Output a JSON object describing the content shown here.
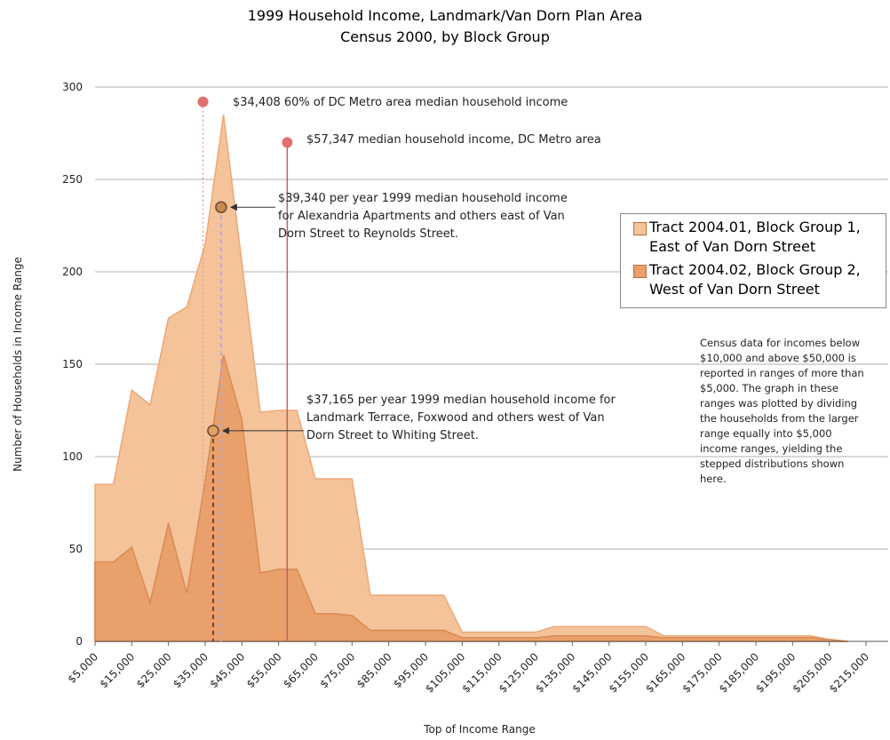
{
  "chart_data": {
    "type": "area",
    "title": "1999 Household Income, Landmark/Van Dorn Plan Area",
    "subtitle": "Census 2000, by Block Group",
    "ylabel": "Number of Households in Income Range",
    "xlabel": "Top of Income Range",
    "x": [
      5000,
      10000,
      15000,
      20000,
      25000,
      30000,
      35000,
      40000,
      45000,
      50000,
      55000,
      60000,
      65000,
      70000,
      75000,
      80000,
      85000,
      90000,
      95000,
      100000,
      105000,
      110000,
      115000,
      120000,
      125000,
      130000,
      135000,
      140000,
      145000,
      150000,
      155000,
      160000,
      165000,
      170000,
      175000,
      180000,
      185000,
      190000,
      195000,
      200000,
      205000,
      210000
    ],
    "series": [
      {
        "name": "Tract 2004.01, Block Group 1, East of Van Dorn Street",
        "color": "#f4c39a",
        "values": [
          85,
          85,
          136,
          128,
          175,
          181,
          215,
          285,
          205,
          124,
          125,
          125,
          88,
          88,
          88,
          25,
          25,
          25,
          25,
          25,
          5,
          5,
          5,
          5,
          5,
          8,
          8,
          8,
          8,
          8,
          8,
          3,
          3,
          3,
          3,
          3,
          3,
          3,
          3,
          3,
          1,
          0
        ]
      },
      {
        "name": "Tract 2004.02, Block Group 2, West of Van Dorn Street",
        "color": "#e9a06a",
        "values": [
          43,
          43,
          51,
          21,
          64,
          26,
          87,
          155,
          120,
          37,
          39,
          39,
          15,
          15,
          14,
          6,
          6,
          6,
          6,
          6,
          2,
          2,
          2,
          2,
          2,
          3,
          3,
          3,
          3,
          3,
          3,
          2,
          2,
          2,
          2,
          2,
          2,
          2,
          2,
          2,
          1,
          0
        ]
      }
    ],
    "xlim": [
      5000,
      215000
    ],
    "xticks": [
      {
        "value": 5000,
        "label": "$5,000"
      },
      {
        "value": 15000,
        "label": "$15,000"
      },
      {
        "value": 25000,
        "label": "$25,000"
      },
      {
        "value": 35000,
        "label": "$35,000"
      },
      {
        "value": 45000,
        "label": "$45,000"
      },
      {
        "value": 55000,
        "label": "$55,000"
      },
      {
        "value": 65000,
        "label": "$65,000"
      },
      {
        "value": 75000,
        "label": "$75,000"
      },
      {
        "value": 85000,
        "label": "$85,000"
      },
      {
        "value": 95000,
        "label": "$95,000"
      },
      {
        "value": 105000,
        "label": "$105,000"
      },
      {
        "value": 115000,
        "label": "$115,000"
      },
      {
        "value": 125000,
        "label": "$125,000"
      },
      {
        "value": 135000,
        "label": "$135,000"
      },
      {
        "value": 145000,
        "label": "$145,000"
      },
      {
        "value": 155000,
        "label": "$155,000"
      },
      {
        "value": 165000,
        "label": "$165,000"
      },
      {
        "value": 175000,
        "label": "$175,000"
      },
      {
        "value": 185000,
        "label": "$185,000"
      },
      {
        "value": 195000,
        "label": "$195,000"
      },
      {
        "value": 205000,
        "label": "$205,000"
      },
      {
        "value": 215000,
        "label": "$215,000"
      }
    ],
    "ylim": [
      0,
      300
    ],
    "yticks": [
      0,
      50,
      100,
      150,
      200,
      250,
      300
    ],
    "grid": true,
    "annotations": [
      {
        "x": 34408,
        "y": 292,
        "label": "$34,408  60% of DC Metro area median household income"
      },
      {
        "x": 57347,
        "y": 270,
        "label": "$57,347 median household income, DC Metro area"
      },
      {
        "x": 39340,
        "y": 235,
        "label": "$39,340 per year 1999 median household income for Alexandria Apartments and others east of Van Dorn Street to Reynolds Street."
      },
      {
        "x": 37165,
        "y": 114,
        "label": "$37,165 per year 1999 median household income for Landmark Terrace, Foxwood and others west of Van Dorn Street to Whiting Street."
      }
    ],
    "note": "Census data for incomes below $10,000 and above $50,000 is reported in ranges of more than $5,000. The graph in these ranges was plotted by dividing the households from the larger range equally into $5,000 income ranges, yielding the stepped distributions shown here."
  }
}
